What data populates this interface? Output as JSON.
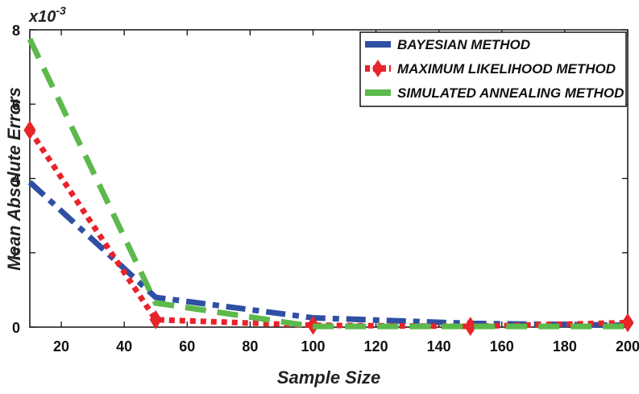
{
  "chart_data": {
    "type": "line",
    "title": "",
    "xlabel": "Sample Size",
    "ylabel": "Mean Absolute Errors",
    "y_exponent_label": "x10-3",
    "y_exponent": {
      "base": "x10",
      "power": "-3"
    },
    "xlim": [
      10,
      200
    ],
    "ylim": [
      0,
      8
    ],
    "x_ticks": [
      20,
      40,
      60,
      80,
      100,
      120,
      140,
      160,
      180,
      200
    ],
    "y_ticks": [
      0,
      2,
      4,
      6,
      8
    ],
    "grid": false,
    "legend_position": "top-right",
    "x": [
      10,
      50,
      100,
      150,
      200
    ],
    "series": [
      {
        "name": "BAYESIAN METHOD",
        "color": "#2e4fa3",
        "dash": "dashdot",
        "marker": "none",
        "values": [
          3.9,
          0.8,
          0.25,
          0.1,
          0.05
        ]
      },
      {
        "name": "MAXIMUM LIKELIHOOD METHOD",
        "color": "#e8232a",
        "dash": "dotted",
        "marker": "diamond",
        "values": [
          5.3,
          0.2,
          0.05,
          0.02,
          0.12
        ]
      },
      {
        "name": "SIMULATED ANNEALING METHOD",
        "color": "#5cb94b",
        "dash": "dashed",
        "marker": "none",
        "values": [
          7.75,
          0.65,
          0.02,
          0.02,
          0.02
        ]
      }
    ]
  }
}
